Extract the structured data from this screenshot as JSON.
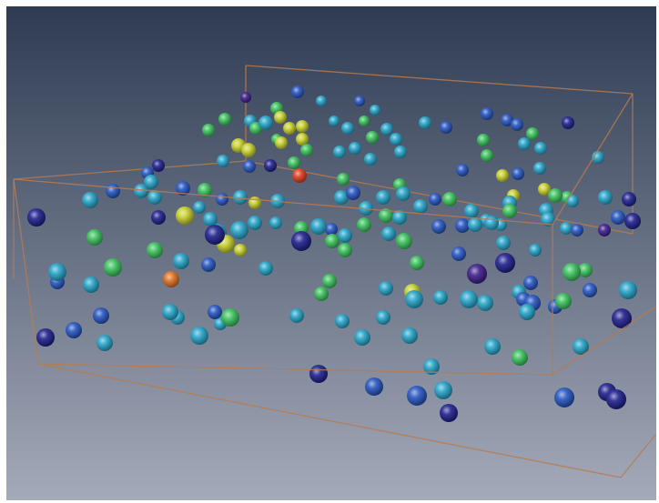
{
  "scene": {
    "kind": "3d-particle-render",
    "background": {
      "top": "#2e3b52",
      "bottom": "#a4aab9"
    },
    "bounding_box_color": "#b97a4f",
    "palette": {
      "navy": "#1b1c8c",
      "blue": "#2352c0",
      "cyan": "#22a3c8",
      "teal": "#2ec0b0",
      "green": "#38c25a",
      "yellow": "#c8d02a",
      "orange": "#e07020",
      "red": "#e03a1c",
      "purple": "#3a1a8a"
    },
    "ticks": [],
    "labels": []
  }
}
